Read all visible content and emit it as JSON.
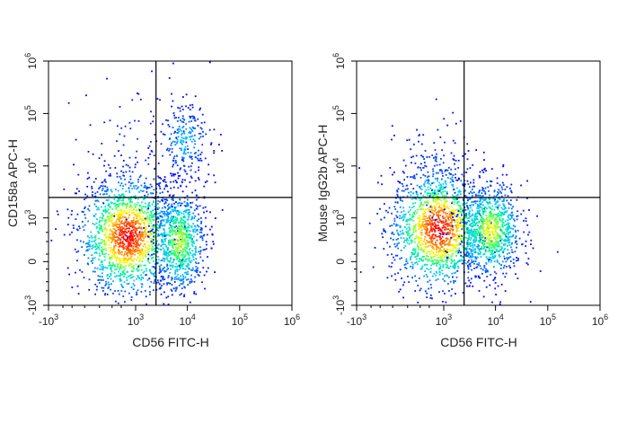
{
  "chart_data": [
    {
      "type": "scatter",
      "subtype": "flow-cytometry-pseudocolor-density",
      "xlabel": "CD56 FITC-H",
      "ylabel": "CD158a APC-H",
      "x_scale": "biexponential",
      "y_scale": "biexponential",
      "xlim": [
        -1000,
        1000000
      ],
      "ylim": [
        -1000,
        1000000
      ],
      "x_tick_labels": [
        {
          "value": -1000,
          "base": "-10",
          "exp": "3"
        },
        {
          "value": 1000,
          "base": "10",
          "exp": "3"
        },
        {
          "value": 10000,
          "base": "10",
          "exp": "4"
        },
        {
          "value": 100000,
          "base": "10",
          "exp": "5"
        },
        {
          "value": 1000000,
          "base": "10",
          "exp": "6"
        }
      ],
      "y_tick_labels": [
        {
          "value": -1000,
          "base": "-10",
          "exp": "3"
        },
        {
          "value": 0,
          "base": "0",
          "exp": ""
        },
        {
          "value": 1000,
          "base": "10",
          "exp": "3"
        },
        {
          "value": 10000,
          "base": "10",
          "exp": "4"
        },
        {
          "value": 100000,
          "base": "10",
          "exp": "5"
        },
        {
          "value": 1000000,
          "base": "10",
          "exp": "6"
        }
      ],
      "quadrant_gate": {
        "x": 2500,
        "y": 2500
      },
      "populations": [
        {
          "center": [
            700,
            400
          ],
          "spread": [
            0.45,
            0.55
          ],
          "count": 1600,
          "peak_density": 1.0
        },
        {
          "center": [
            7000,
            300
          ],
          "spread": [
            0.25,
            0.5
          ],
          "count": 800,
          "peak_density": 0.55
        },
        {
          "center": [
            9000,
            30000
          ],
          "spread": [
            0.25,
            0.35
          ],
          "count": 220,
          "peak_density": 0.2
        },
        {
          "center": [
            1500,
            20000
          ],
          "spread": [
            0.6,
            0.8
          ],
          "count": 120,
          "peak_density": 0.05
        }
      ]
    },
    {
      "type": "scatter",
      "subtype": "flow-cytometry-pseudocolor-density",
      "xlabel": "CD56 FITC-H",
      "ylabel": "Mouse IgG2b APC-H",
      "x_scale": "biexponential",
      "y_scale": "biexponential",
      "xlim": [
        -1000,
        1000000
      ],
      "ylim": [
        -1000,
        1000000
      ],
      "x_tick_labels": [
        {
          "value": -1000,
          "base": "-10",
          "exp": "3"
        },
        {
          "value": 1000,
          "base": "10",
          "exp": "3"
        },
        {
          "value": 10000,
          "base": "10",
          "exp": "4"
        },
        {
          "value": 100000,
          "base": "10",
          "exp": "5"
        },
        {
          "value": 1000000,
          "base": "10",
          "exp": "6"
        }
      ],
      "y_tick_labels": [
        {
          "value": -1000,
          "base": "-10",
          "exp": "3"
        },
        {
          "value": 0,
          "base": "0",
          "exp": ""
        },
        {
          "value": 1000,
          "base": "10",
          "exp": "3"
        },
        {
          "value": 10000,
          "base": "10",
          "exp": "4"
        },
        {
          "value": 100000,
          "base": "10",
          "exp": "5"
        },
        {
          "value": 1000000,
          "base": "10",
          "exp": "6"
        }
      ],
      "quadrant_gate": {
        "x": 2500,
        "y": 2500
      },
      "populations": [
        {
          "center": [
            800,
            600
          ],
          "spread": [
            0.45,
            0.55
          ],
          "count": 1500,
          "peak_density": 1.0
        },
        {
          "center": [
            8000,
            550
          ],
          "spread": [
            0.3,
            0.45
          ],
          "count": 900,
          "peak_density": 0.6
        },
        {
          "center": [
            600,
            8000
          ],
          "spread": [
            0.35,
            0.5
          ],
          "count": 120,
          "peak_density": 0.08
        }
      ]
    }
  ],
  "colors": {
    "density_scale": [
      "#0000ff",
      "#00c8ff",
      "#00ff80",
      "#ffff00",
      "#ff8000",
      "#ff0000"
    ],
    "axis": "#000000",
    "gate_line": "#000000"
  }
}
